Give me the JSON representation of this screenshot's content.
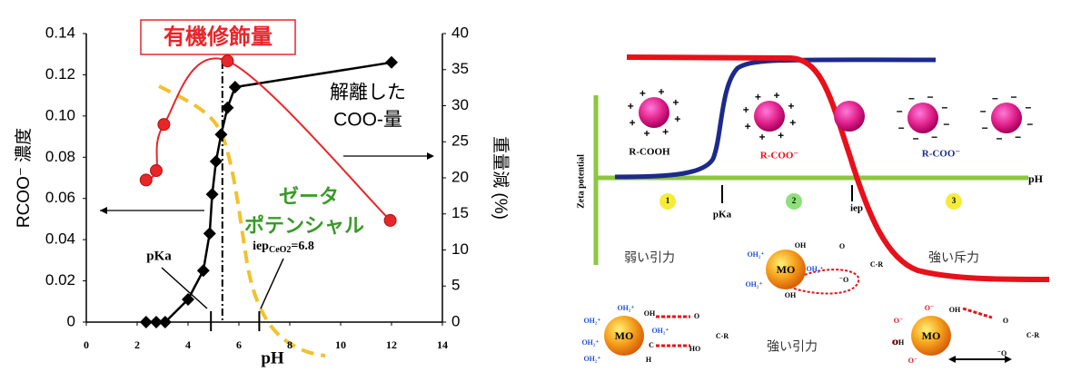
{
  "chart_data": {
    "type": "line",
    "xlabel": "pH",
    "ylabel": "RCOO⁻ 濃度",
    "y2label": "重量減 (%)",
    "xlim": [
      0,
      14
    ],
    "xticks": [
      0,
      2,
      4,
      6,
      8,
      10,
      12,
      14
    ],
    "ylim": [
      0,
      0.14
    ],
    "yticks": [
      0,
      0.02,
      0.04,
      0.06,
      0.08,
      {
        "value": 0.1,
        "label": "0.10"
      },
      0.12,
      0.14
    ],
    "y2lim": [
      0,
      40
    ],
    "y2ticks": [
      0,
      5,
      10,
      15,
      20,
      25,
      30,
      35,
      40
    ],
    "series": [
      {
        "name_lines": [
          "解離した",
          "COO-量"
        ],
        "color": "#000000",
        "marker": "diamond",
        "x": [
          2.35,
          2.75,
          3.1,
          4.0,
          4.6,
          4.85,
          4.95,
          5.1,
          5.3,
          5.55,
          5.85,
          12.0
        ],
        "values": [
          0,
          0,
          0,
          0.011,
          0.025,
          0.043,
          0.062,
          0.078,
          0.091,
          0.104,
          0.114,
          0.126
        ]
      },
      {
        "name": "有機修飾量",
        "color": "#e8262a",
        "marker": "circle",
        "axis": "y2",
        "x": [
          2.35,
          2.75,
          3.05,
          5.55,
          11.95
        ],
        "values": [
          19.7,
          21.0,
          27.4,
          36.2,
          14.1
        ]
      }
    ],
    "annotations": {
      "zeta": [
        "ゼータ",
        "ポテンシャル"
      ],
      "pka": "pKa",
      "iep": {
        "text": "iep",
        "sub": "CeO2",
        "tail": "=6.8"
      }
    },
    "vline": 5.35,
    "pka_x": 4.9,
    "iep_x": 6.8
  },
  "diagram": {
    "axis_label": "Zeta potential",
    "ph": "pH",
    "species": [
      "R-COOH",
      "R-COO⁻",
      "R-COO⁻"
    ],
    "regions": [
      "1",
      "2",
      "3"
    ],
    "markers": [
      "pKa",
      "iep"
    ],
    "forces": [
      "弱い引力",
      "強い斥力",
      "強い引力"
    ],
    "molecule_mid": [
      "MO",
      "OH₂⁺",
      "OH",
      "OH₂⁺",
      "OH₂⁺",
      "OH",
      "O",
      "⁻O",
      "C-R"
    ],
    "molecule_left": [
      "MO",
      "OH₂⁺",
      "OH₂⁺",
      "OH₂⁺",
      "OH₂⁺",
      "OH",
      "OH₂⁺",
      "O",
      "C-R",
      "HO",
      "C",
      "H"
    ],
    "molecule_right": [
      "MO",
      "O⁻",
      "OH",
      "O⁻",
      "O⁻",
      "OH",
      "O⁻",
      "O",
      "C-R",
      "⁻O"
    ]
  }
}
